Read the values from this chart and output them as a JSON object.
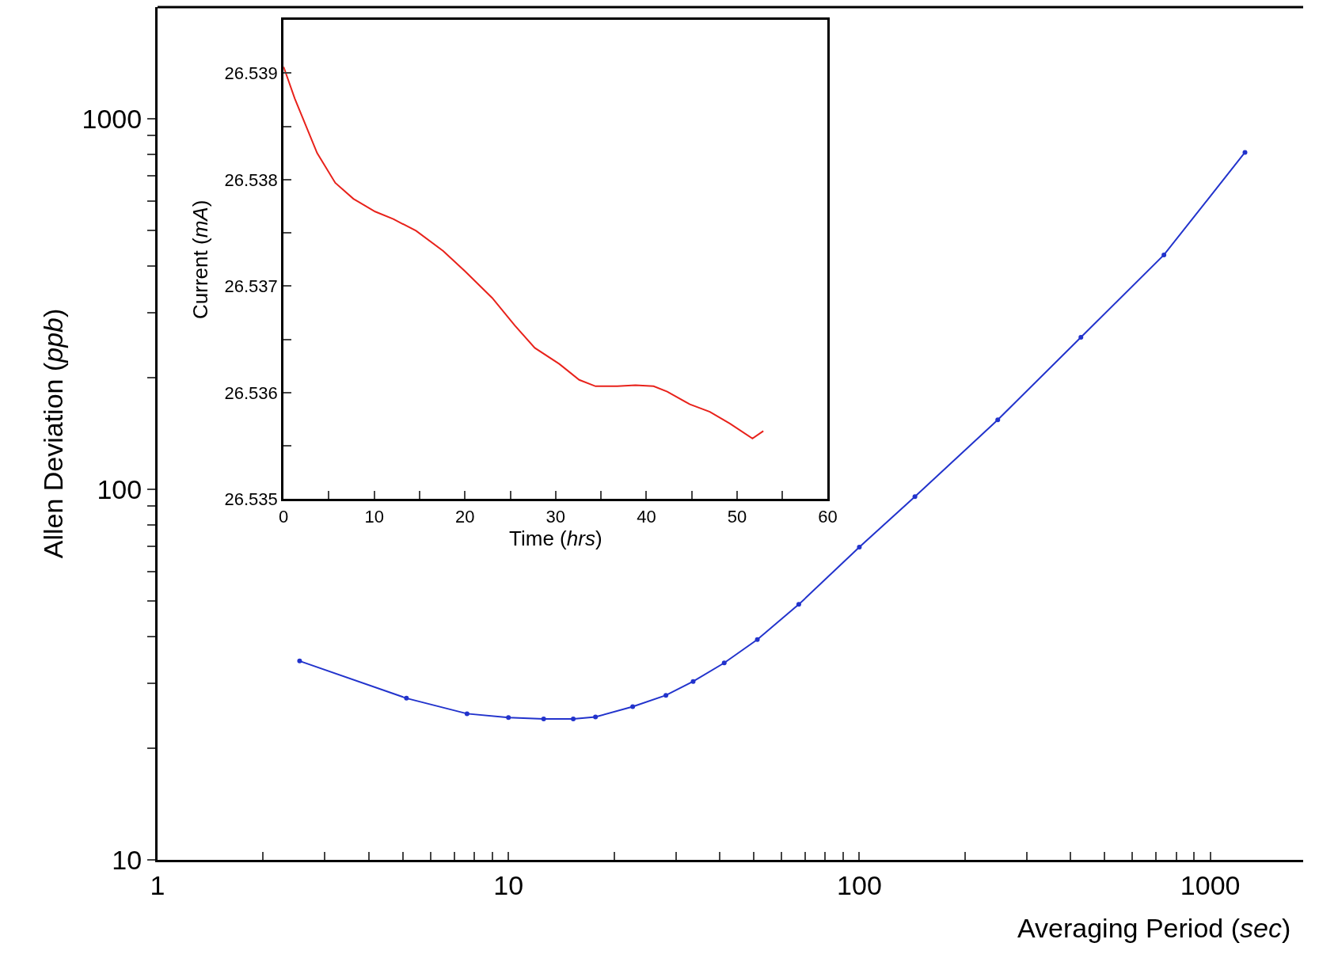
{
  "chart_data": [
    {
      "type": "line",
      "xlabel": "Averaging Period (sec)",
      "ylabel": "Allen Deviation (ppb)",
      "log": "xy",
      "marker": "circle",
      "line_style": "solid",
      "xlim": [
        1,
        1840
      ],
      "ylim": [
        10,
        2000
      ],
      "xticks": [
        1,
        {
          "value": 2,
          "label": null
        },
        {
          "value": 3,
          "label": null
        },
        {
          "value": 4,
          "label": null
        },
        {
          "value": 5,
          "label": null
        },
        {
          "value": 6,
          "label": null
        },
        {
          "value": 7,
          "label": null
        },
        {
          "value": 8,
          "label": null
        },
        {
          "value": 9,
          "label": null
        },
        10,
        {
          "value": 20,
          "label": null
        },
        {
          "value": 30,
          "label": null
        },
        {
          "value": 40,
          "label": null
        },
        {
          "value": 50,
          "label": null
        },
        {
          "value": 60,
          "label": null
        },
        {
          "value": 70,
          "label": null
        },
        {
          "value": 80,
          "label": null
        },
        {
          "value": 90,
          "label": null
        },
        100,
        {
          "value": 200,
          "label": null
        },
        {
          "value": 300,
          "label": null
        },
        {
          "value": 400,
          "label": null
        },
        {
          "value": 500,
          "label": null
        },
        {
          "value": 600,
          "label": null
        },
        {
          "value": 700,
          "label": null
        },
        {
          "value": 800,
          "label": null
        },
        {
          "value": 900,
          "label": null
        },
        1000
      ],
      "yticks": [
        10,
        {
          "value": 20,
          "label": null
        },
        {
          "value": 30,
          "label": null
        },
        {
          "value": 40,
          "label": null
        },
        {
          "value": 50,
          "label": null
        },
        {
          "value": 60,
          "label": null
        },
        {
          "value": 70,
          "label": null
        },
        {
          "value": 80,
          "label": null
        },
        {
          "value": 90,
          "label": null
        },
        100,
        {
          "value": 200,
          "label": null
        },
        {
          "value": 300,
          "label": null
        },
        {
          "value": 400,
          "label": null
        },
        {
          "value": 500,
          "label": null
        },
        {
          "value": 600,
          "label": null
        },
        {
          "value": 700,
          "label": null
        },
        {
          "value": 800,
          "label": null
        },
        {
          "value": 900,
          "label": null
        },
        1000
      ],
      "x": [
        2.54,
        5.12,
        7.62,
        10,
        12.6,
        15.3,
        17.7,
        22.6,
        28.1,
        33.6,
        41.2,
        51.2,
        67.2,
        100,
        144,
        248,
        428,
        738,
        1256
      ],
      "series": [
        {
          "color": "#2233cc",
          "values": [
            34.4,
            27.3,
            24.8,
            24.2,
            24.0,
            24.0,
            24.3,
            25.9,
            27.8,
            30.3,
            34.0,
            39.3,
            48.9,
            69.8,
            95.5,
            154,
            257,
            429,
            811
          ]
        }
      ]
    },
    {
      "type": "line",
      "xlabel": "Time (hrs)",
      "ylabel": "Current (mA)",
      "line_style": "solid",
      "xlim": [
        0,
        60
      ],
      "ylim": [
        26.535,
        26.5395
      ],
      "xticks": [
        0,
        {
          "value": 5,
          "label": null
        },
        10,
        {
          "value": 15,
          "label": null
        },
        20,
        {
          "value": 25,
          "label": null
        },
        30,
        {
          "value": 35,
          "label": null
        },
        40,
        {
          "value": 45,
          "label": null
        },
        50,
        {
          "value": 55,
          "label": null
        },
        60
      ],
      "yticks": [
        26.535,
        {
          "value": 26.5355,
          "label": null
        },
        26.536,
        {
          "value": 26.5365,
          "label": null
        },
        26.537,
        {
          "value": 26.5375,
          "label": null
        },
        26.538,
        {
          "value": 26.5385,
          "label": null
        },
        26.539
      ],
      "x": [
        0,
        1.24,
        3.7,
        5.7,
        7.7,
        10.1,
        12.1,
        14.6,
        17.6,
        20.0,
        23.0,
        25.5,
        27.7,
        30.4,
        32.6,
        34.4,
        36.8,
        38.8,
        40.8,
        42.3,
        44.8,
        47.0,
        49.2,
        51.7,
        52.9
      ],
      "series": [
        {
          "color": "#e8221b",
          "values": [
            26.53906,
            26.53876,
            26.53825,
            26.53797,
            26.53782,
            26.5377,
            26.53763,
            26.53752,
            26.53733,
            26.53714,
            26.53689,
            26.53663,
            26.53642,
            26.53627,
            26.53612,
            26.53606,
            26.53606,
            26.53607,
            26.53606,
            26.53601,
            26.53589,
            26.53582,
            26.53571,
            26.53557,
            26.53564
          ]
        }
      ]
    }
  ]
}
